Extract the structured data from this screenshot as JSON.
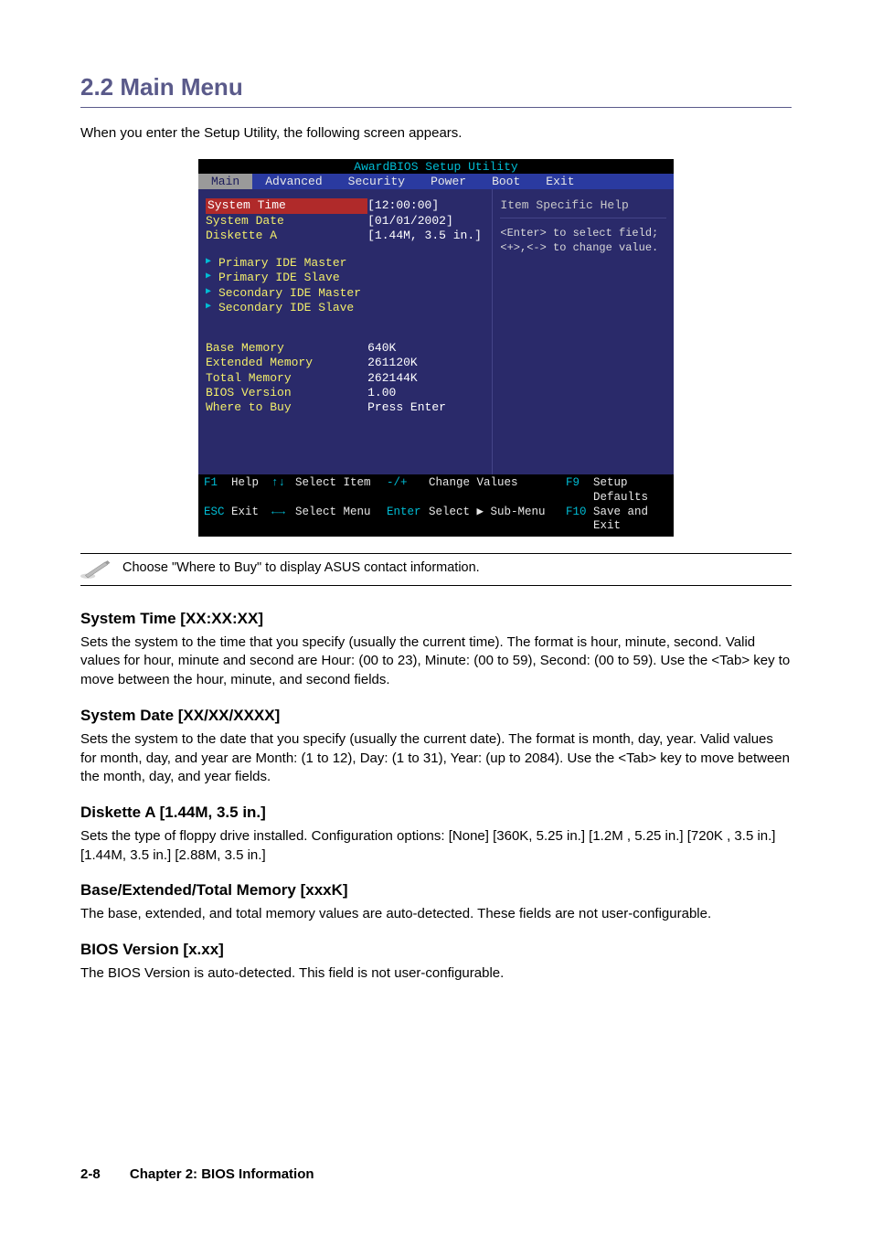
{
  "section_title": "2.2 Main Menu",
  "intro": "When you enter the Setup Utility, the following screen appears.",
  "bios": {
    "title": "AwardBIOS Setup Utility",
    "tabs": [
      "Main",
      "Advanced",
      "Security",
      "Power",
      "Boot",
      "Exit"
    ],
    "active_tab": "Main",
    "rows_top": [
      {
        "label": "System Time",
        "value": "[12:00:00]",
        "selected": true
      },
      {
        "label": "System Date",
        "value": "[01/01/2002]"
      },
      {
        "label": "Diskette A",
        "value": "[1.44M, 3.5 in.]"
      }
    ],
    "subs": [
      "Primary IDE Master",
      "Primary IDE Slave",
      "Secondary IDE Master",
      "Secondary IDE Slave"
    ],
    "rows_bottom": [
      {
        "label": "Base Memory",
        "value": "640K"
      },
      {
        "label": "Extended Memory",
        "value": "261120K"
      },
      {
        "label": "Total Memory",
        "value": "262144K"
      },
      {
        "label": "BIOS Version",
        "value": "1.00"
      },
      {
        "label": "Where to Buy",
        "value": "Press Enter"
      }
    ],
    "help_title": "Item Specific Help",
    "help_body": "<Enter> to select field; <+>,<-> to change value.",
    "foot": {
      "r1": [
        "F1",
        "Help",
        "↑↓",
        "Select Item",
        "-/+",
        "Change Values",
        "F9",
        "Setup Defaults"
      ],
      "r2": [
        "ESC",
        "Exit",
        "←→",
        "Select Menu",
        "Enter",
        "Select ▶ Sub-Menu",
        "F10",
        "Save and Exit"
      ]
    }
  },
  "note": "Choose \"Where to Buy\" to display ASUS contact information.",
  "items": [
    {
      "heading": "System Time [XX:XX:XX]",
      "body": "Sets the system to the time that you specify (usually the current time). The format is hour, minute, second. Valid values for hour, minute and second are Hour: (00 to 23), Minute: (00 to 59), Second: (00 to 59). Use the <Tab> key to move between the hour, minute, and second fields."
    },
    {
      "heading": "System Date [XX/XX/XXXX]",
      "body": "Sets the system to the date that you specify (usually the current date). The format is month, day, year. Valid values for month, day, and year are Month: (1 to 12), Day: (1 to 31), Year: (up to 2084). Use the <Tab> key to move between the month, day, and year fields."
    },
    {
      "heading": "Diskette A [1.44M, 3.5 in.]",
      "body": "Sets the type of floppy drive installed. Configuration options: [None] [360K, 5.25 in.] [1.2M , 5.25 in.] [720K , 3.5 in.] [1.44M, 3.5 in.] [2.88M, 3.5 in.]"
    },
    {
      "heading": "Base/Extended/Total Memory [xxxK]",
      "body": "The base, extended, and total memory values are auto-detected. These fields are not user-configurable."
    },
    {
      "heading": "BIOS Version [x.xx]",
      "body": "The BIOS Version is auto-detected. This field is not user-configurable."
    }
  ],
  "footer": {
    "page": "2-8",
    "chapter": "Chapter 2: BIOS Information"
  }
}
